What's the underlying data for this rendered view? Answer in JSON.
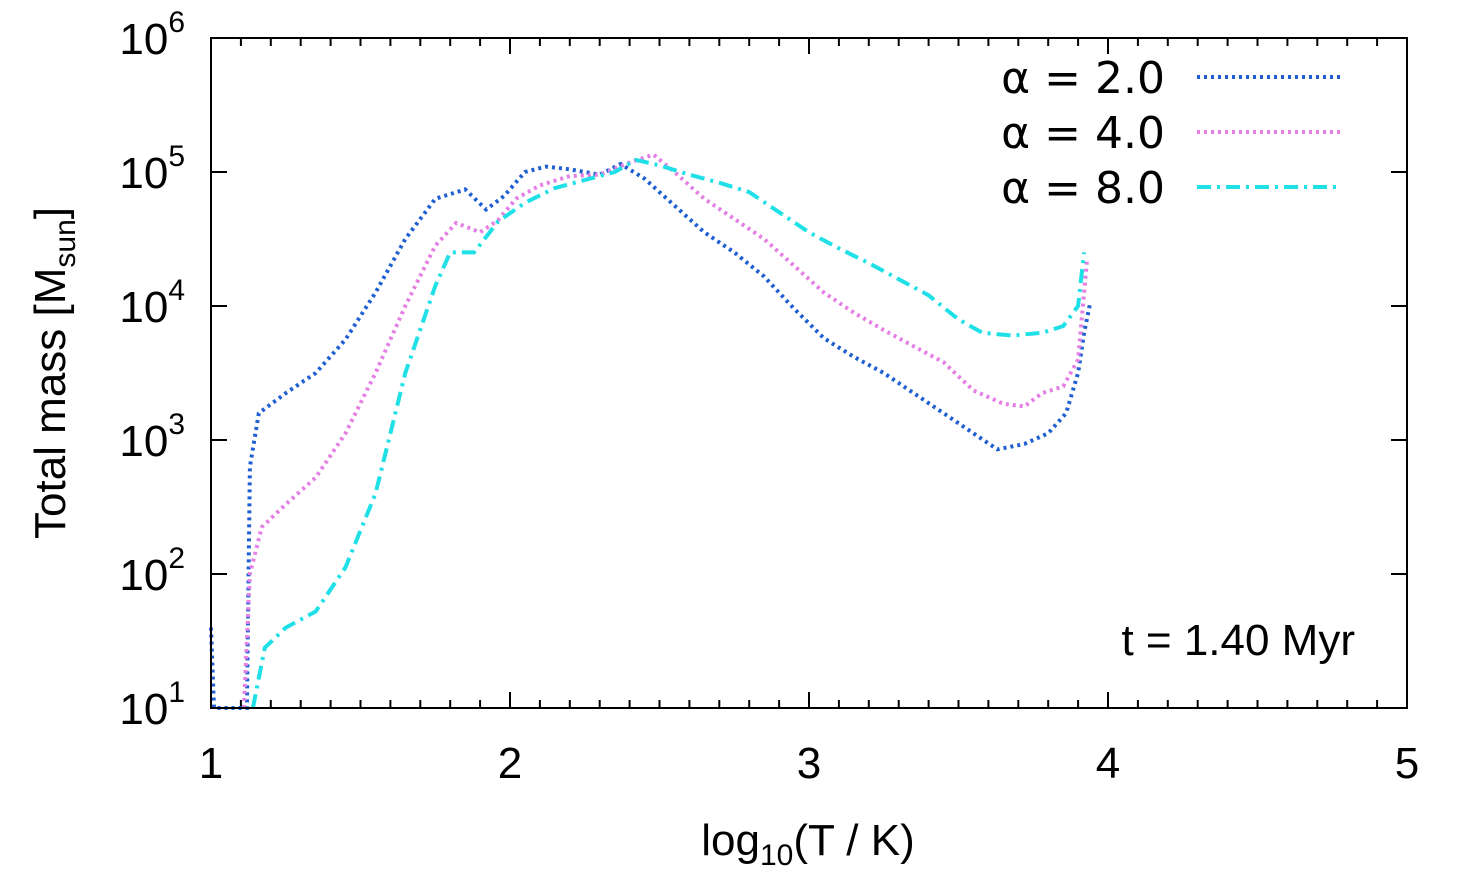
{
  "chart_data": {
    "type": "line",
    "xlabel": {
      "prefix": "log",
      "sub": "10",
      "suffix": "(T / K)"
    },
    "ylabel": {
      "prefix": "Total mass [M",
      "sub": "sun",
      "suffix": "]"
    },
    "xlim": [
      1,
      5
    ],
    "ylim_log10": [
      1,
      6
    ],
    "x_ticks": [
      "1",
      "2",
      "3",
      "4",
      "5"
    ],
    "y_ticks": [
      {
        "base": "10",
        "exp": "1"
      },
      {
        "base": "10",
        "exp": "2"
      },
      {
        "base": "10",
        "exp": "3"
      },
      {
        "base": "10",
        "exp": "4"
      },
      {
        "base": "10",
        "exp": "5"
      },
      {
        "base": "10",
        "exp": "6"
      }
    ],
    "annotation": "t = 1.40 Myr",
    "legend_position": "top-right",
    "series": [
      {
        "name": "α = 2.0",
        "color": "#1f5fd1",
        "style": "dotted",
        "points": [
          [
            1.0,
            1.6
          ],
          [
            1.01,
            1.0
          ],
          [
            1.12,
            1.0
          ],
          [
            1.13,
            2.8
          ],
          [
            1.16,
            3.2
          ],
          [
            1.25,
            3.35
          ],
          [
            1.35,
            3.5
          ],
          [
            1.45,
            3.75
          ],
          [
            1.55,
            4.1
          ],
          [
            1.65,
            4.5
          ],
          [
            1.75,
            4.8
          ],
          [
            1.85,
            4.87
          ],
          [
            1.92,
            4.72
          ],
          [
            1.98,
            4.82
          ],
          [
            2.05,
            5.0
          ],
          [
            2.12,
            5.04
          ],
          [
            2.2,
            5.02
          ],
          [
            2.3,
            4.98
          ],
          [
            2.37,
            5.06
          ],
          [
            2.45,
            4.95
          ],
          [
            2.55,
            4.75
          ],
          [
            2.65,
            4.55
          ],
          [
            2.75,
            4.4
          ],
          [
            2.85,
            4.22
          ],
          [
            2.95,
            3.98
          ],
          [
            3.05,
            3.76
          ],
          [
            3.15,
            3.62
          ],
          [
            3.25,
            3.5
          ],
          [
            3.35,
            3.35
          ],
          [
            3.45,
            3.2
          ],
          [
            3.55,
            3.05
          ],
          [
            3.63,
            2.93
          ],
          [
            3.72,
            2.97
          ],
          [
            3.8,
            3.05
          ],
          [
            3.86,
            3.2
          ],
          [
            3.9,
            3.5
          ],
          [
            3.92,
            3.8
          ],
          [
            3.94,
            4.02
          ]
        ]
      },
      {
        "name": "α = 4.0",
        "color": "#e47fe4",
        "style": "dotted",
        "points": [
          [
            1.11,
            1.0
          ],
          [
            1.13,
            2.0
          ],
          [
            1.17,
            2.35
          ],
          [
            1.25,
            2.52
          ],
          [
            1.35,
            2.72
          ],
          [
            1.45,
            3.05
          ],
          [
            1.55,
            3.5
          ],
          [
            1.65,
            4.0
          ],
          [
            1.75,
            4.45
          ],
          [
            1.82,
            4.62
          ],
          [
            1.9,
            4.55
          ],
          [
            1.96,
            4.64
          ],
          [
            2.02,
            4.8
          ],
          [
            2.1,
            4.9
          ],
          [
            2.2,
            4.97
          ],
          [
            2.3,
            4.98
          ],
          [
            2.4,
            5.07
          ],
          [
            2.48,
            5.13
          ],
          [
            2.55,
            5.0
          ],
          [
            2.65,
            4.8
          ],
          [
            2.75,
            4.65
          ],
          [
            2.85,
            4.5
          ],
          [
            2.95,
            4.3
          ],
          [
            3.05,
            4.1
          ],
          [
            3.15,
            3.95
          ],
          [
            3.25,
            3.82
          ],
          [
            3.35,
            3.7
          ],
          [
            3.45,
            3.58
          ],
          [
            3.55,
            3.37
          ],
          [
            3.65,
            3.27
          ],
          [
            3.72,
            3.25
          ],
          [
            3.78,
            3.35
          ],
          [
            3.85,
            3.4
          ],
          [
            3.9,
            3.6
          ],
          [
            3.93,
            4.35
          ]
        ]
      },
      {
        "name": "α = 8.0",
        "color": "#1ee0e6",
        "style": "dashdot",
        "points": [
          [
            1.14,
            1.0
          ],
          [
            1.18,
            1.45
          ],
          [
            1.25,
            1.6
          ],
          [
            1.35,
            1.72
          ],
          [
            1.45,
            2.05
          ],
          [
            1.55,
            2.6
          ],
          [
            1.65,
            3.5
          ],
          [
            1.75,
            4.15
          ],
          [
            1.8,
            4.4
          ],
          [
            1.88,
            4.4
          ],
          [
            1.96,
            4.63
          ],
          [
            2.05,
            4.77
          ],
          [
            2.15,
            4.88
          ],
          [
            2.25,
            4.94
          ],
          [
            2.35,
            5.0
          ],
          [
            2.42,
            5.09
          ],
          [
            2.5,
            5.05
          ],
          [
            2.6,
            4.98
          ],
          [
            2.7,
            4.92
          ],
          [
            2.8,
            4.85
          ],
          [
            2.9,
            4.7
          ],
          [
            3.0,
            4.55
          ],
          [
            3.1,
            4.43
          ],
          [
            3.2,
            4.32
          ],
          [
            3.3,
            4.2
          ],
          [
            3.4,
            4.08
          ],
          [
            3.5,
            3.9
          ],
          [
            3.58,
            3.8
          ],
          [
            3.68,
            3.78
          ],
          [
            3.78,
            3.8
          ],
          [
            3.85,
            3.85
          ],
          [
            3.9,
            4.0
          ],
          [
            3.92,
            4.4
          ]
        ]
      }
    ]
  }
}
